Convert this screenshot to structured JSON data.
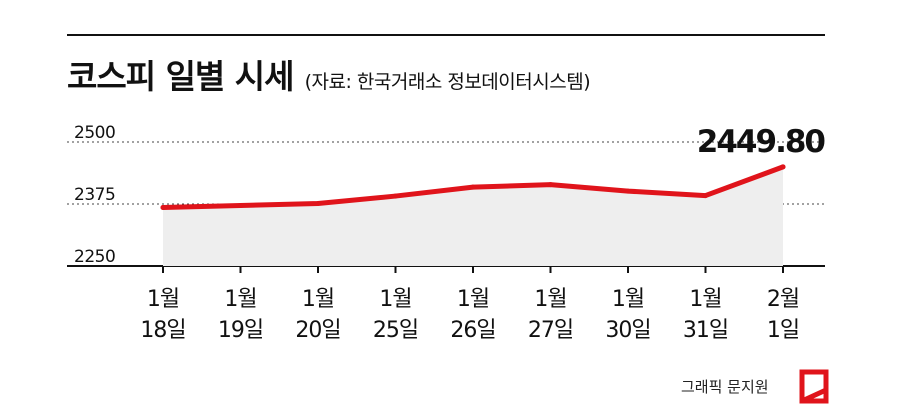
{
  "title": "코스피 일별 시세",
  "source": "(자료: 한국거래소 정보데이터시스템)",
  "credit": "그래픽 문지원",
  "colors": {
    "line": "#e0141b",
    "area": "#eeeeee",
    "grid": "#444444",
    "baseline": "#111111",
    "logo": "#e0141b"
  },
  "chart_data": {
    "type": "area",
    "title": "코스피 일별 시세",
    "categories": [
      [
        "1월",
        "18일"
      ],
      [
        "1월",
        "19일"
      ],
      [
        "1월",
        "20일"
      ],
      [
        "1월",
        "25일"
      ],
      [
        "1월",
        "26일"
      ],
      [
        "1월",
        "27일"
      ],
      [
        "1월",
        "30일"
      ],
      [
        "1월",
        "31일"
      ],
      [
        "2월",
        "1일"
      ]
    ],
    "series": [
      {
        "values": [
          2368,
          2372,
          2376,
          2391,
          2409,
          2414,
          2401,
          2392,
          2449.8
        ]
      }
    ],
    "ylim": [
      2250,
      2500
    ],
    "yticks": [
      "2500",
      "2375",
      "2250"
    ],
    "last_value_label": "2449.80",
    "grid": "dotted"
  }
}
